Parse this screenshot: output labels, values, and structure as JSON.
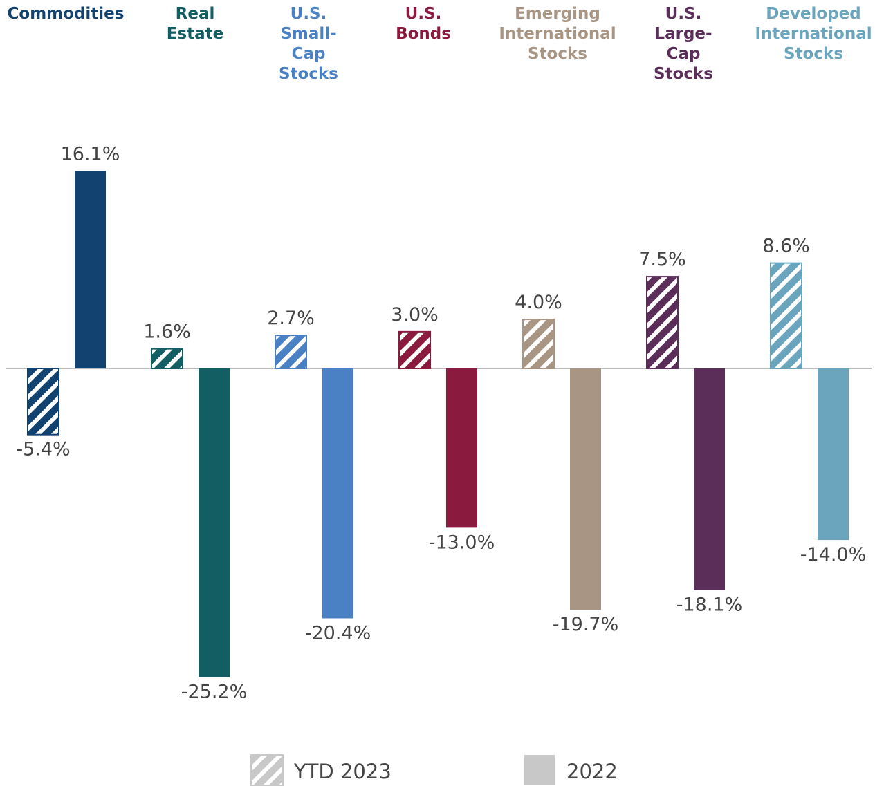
{
  "chart_data": {
    "type": "bar",
    "categories": [
      "Commodities",
      "Real Estate",
      "U.S. Small-Cap Stocks",
      "U.S. Bonds",
      "Emerging International Stocks",
      "U.S. Large-Cap Stocks",
      "Developed International Stocks"
    ],
    "category_colors": [
      "#12426f",
      "#135e63",
      "#4a80c4",
      "#8a1a3e",
      "#a89583",
      "#5b2e5a",
      "#6aa5bd"
    ],
    "series": [
      {
        "name": "YTD 2023",
        "pattern": "hatch",
        "color": "#c8c8c8",
        "values": [
          -5.4,
          1.6,
          2.7,
          3.0,
          4.0,
          7.5,
          8.6
        ],
        "value_labels": [
          "-5.4%",
          "1.6%",
          "2.7%",
          "3.0%",
          "4.0%",
          "7.5%",
          "8.6%"
        ]
      },
      {
        "name": "2022",
        "pattern": "solid",
        "color": "#c8c8c8",
        "values": [
          16.1,
          -25.2,
          -20.4,
          -13.0,
          -19.7,
          -18.1,
          -14.0
        ],
        "value_labels": [
          "16.1%",
          "-25.2%",
          "-20.4%",
          "-13.0%",
          "-19.7%",
          "-18.1%",
          "-14.0%"
        ]
      }
    ]
  }
}
